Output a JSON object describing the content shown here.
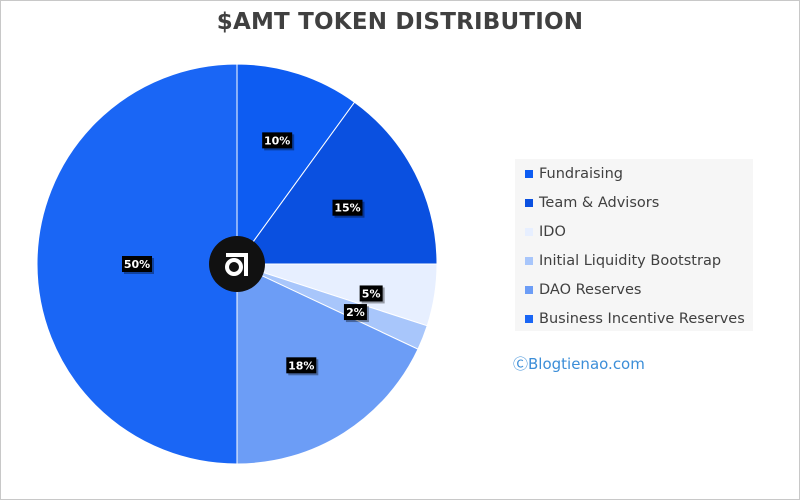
{
  "chart_data": {
    "type": "pie",
    "title": "$AMT TOKEN DISTRIBUTION",
    "slices": [
      {
        "label": "Fundraising",
        "value": 10,
        "value_label": "10%",
        "color": "#0d5cf2"
      },
      {
        "label": "Team & Advisors",
        "value": 15,
        "value_label": "15%",
        "color": "#0a50e0"
      },
      {
        "label": "IDO",
        "value": 5,
        "value_label": "5%",
        "color": "#e7efff"
      },
      {
        "label": "Initial Liquidity Bootstrap",
        "value": 2,
        "value_label": "2%",
        "color": "#a8c6fb"
      },
      {
        "label": "DAO Reserves",
        "value": 18,
        "value_label": "18%",
        "color": "#6c9df6"
      },
      {
        "label": "Business Incentive Reserves",
        "value": 50,
        "value_label": "50%",
        "color": "#1a66f5"
      }
    ],
    "start_angle_deg": 0,
    "direction": "clockwise",
    "legend_position": "right"
  },
  "watermark": "ⒸBlogtienao.com",
  "colors": {
    "logo_circle": "#111111",
    "label_box": "#000000",
    "label_text": "#ffffff"
  },
  "icons": {
    "center_logo": "amt-logo-icon"
  }
}
